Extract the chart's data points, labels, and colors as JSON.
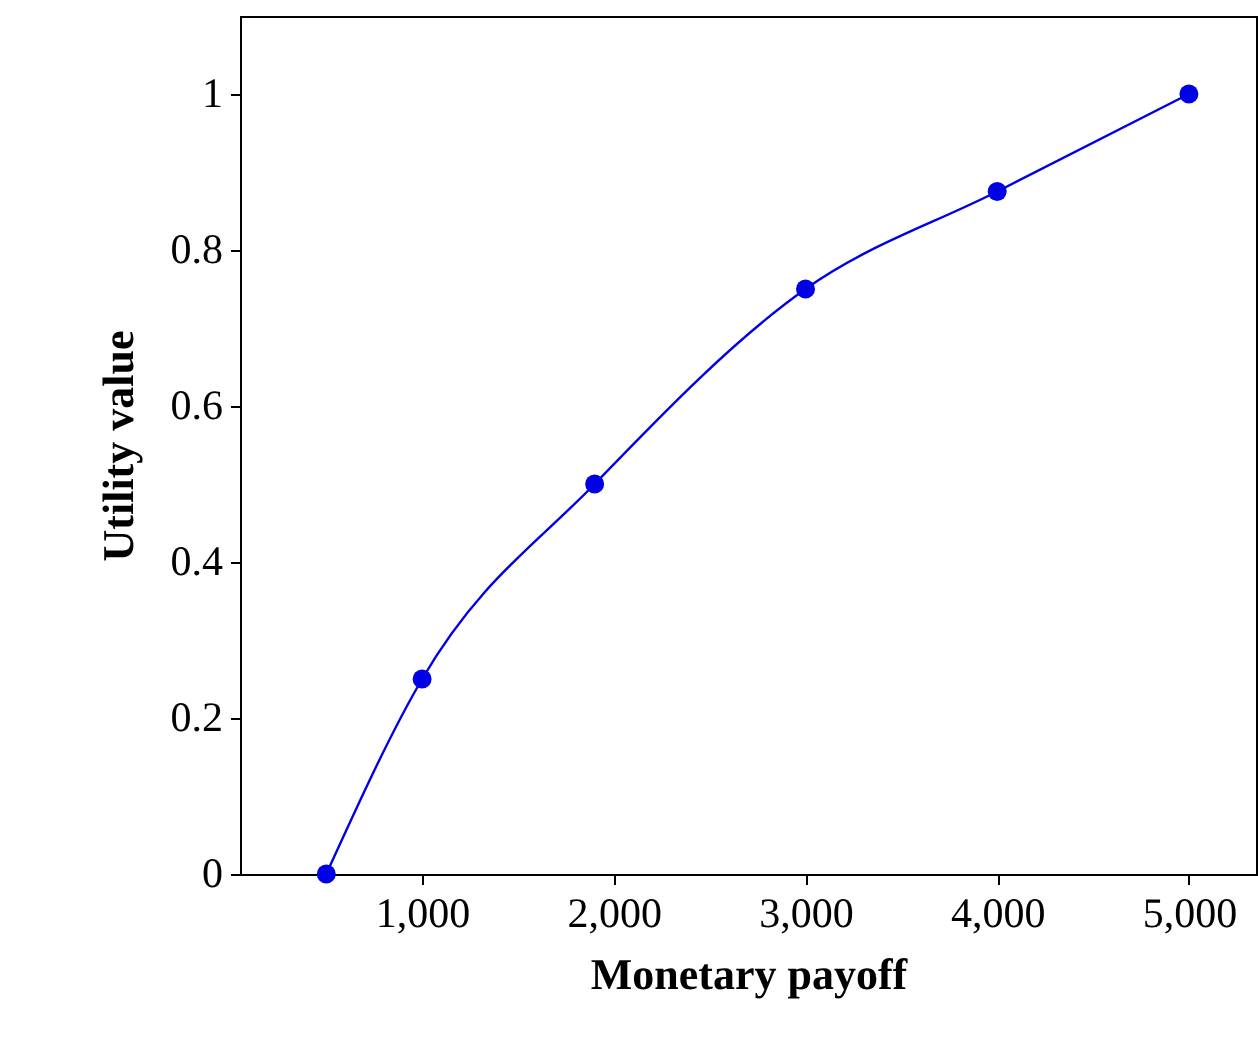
{
  "chart_data": {
    "type": "line",
    "xlabel": "Monetary payoff",
    "ylabel": "Utility value",
    "x": [
      500,
      1000,
      1900,
      3000,
      4000,
      5000
    ],
    "series": [
      {
        "color": "#0000e6",
        "values": [
          0,
          0.25,
          0.5,
          0.75,
          0.875,
          1
        ]
      }
    ],
    "xlim": [
      50,
      5350
    ],
    "ylim": [
      0,
      1.1
    ],
    "xticks": [
      {
        "value": 1000,
        "label": "1,000"
      },
      {
        "value": 2000,
        "label": "2,000"
      },
      {
        "value": 3000,
        "label": "3,000"
      },
      {
        "value": 4000,
        "label": "4,000"
      },
      {
        "value": 5000,
        "label": "5,000"
      }
    ],
    "yticks": [
      0,
      0.2,
      0.4,
      0.6,
      0.8,
      1
    ],
    "marker": "circle",
    "line_style": "solid"
  }
}
